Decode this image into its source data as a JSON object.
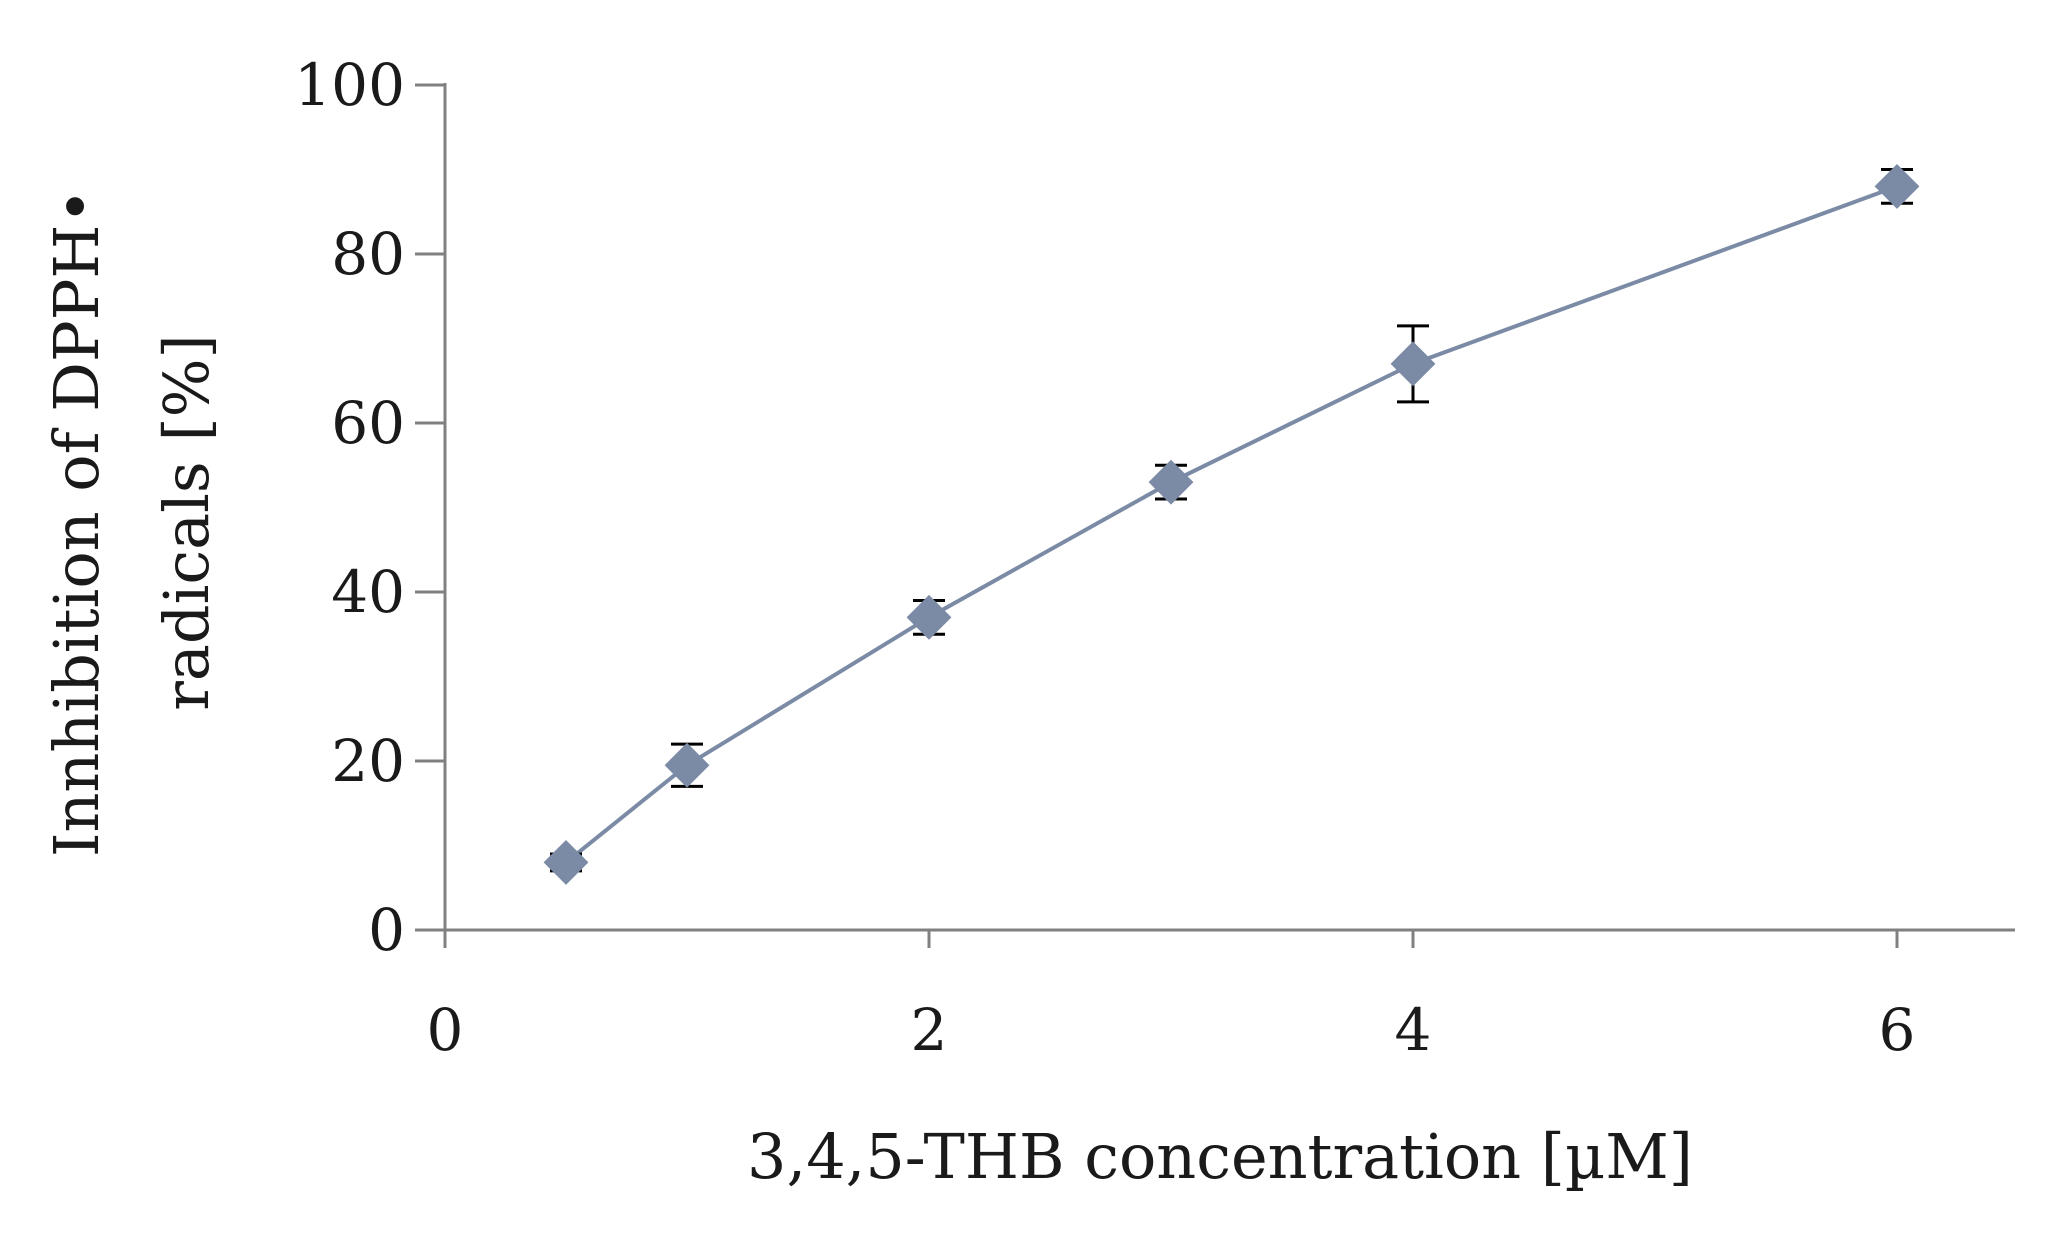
{
  "chart_data": {
    "type": "line",
    "xlabel": "3,4,5-THB concentration [µM]",
    "ylabel_lines": [
      "Innhibition of DPPH•",
      "radicals [%]"
    ],
    "xlim": [
      0,
      6.5
    ],
    "ylim": [
      0,
      100
    ],
    "x_ticks": [
      0,
      2,
      4,
      6
    ],
    "y_ticks": [
      0,
      20,
      40,
      60,
      80,
      100
    ],
    "grid": false,
    "legend": "none",
    "series": [
      {
        "color": "#7b8aa5",
        "x": [
          0.5,
          1,
          2,
          3,
          4,
          6
        ],
        "y": [
          8,
          19.5,
          37,
          53,
          67,
          88
        ],
        "error": [
          1,
          2.5,
          2,
          2,
          4.5,
          2
        ]
      }
    ]
  },
  "colors": {
    "axis": "#808080",
    "errorbar": "#000000",
    "marker": "#7b8aa5",
    "line": "#7b8aa5"
  }
}
